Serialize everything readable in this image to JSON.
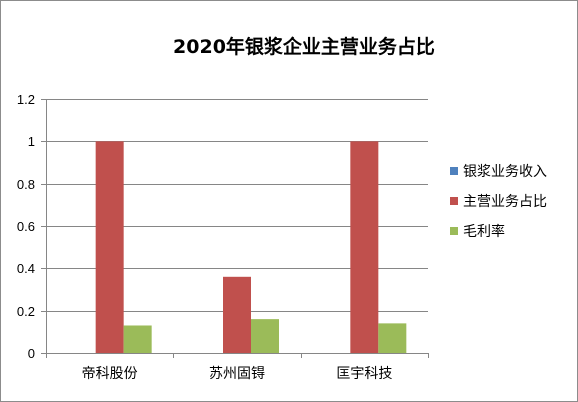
{
  "chart_data": {
    "type": "bar",
    "title": "2020年银浆企业主营业务占比",
    "xlabel": "",
    "ylabel": "",
    "categories": [
      "帝科股份",
      "苏州固锝",
      "匡宇科技"
    ],
    "series": [
      {
        "name": "银浆业务收入",
        "color": "#4f81bd",
        "values": [
          0,
          0,
          0
        ]
      },
      {
        "name": "主营业务占比",
        "color": "#c0504d",
        "values": [
          1.0,
          0.36,
          1.0
        ]
      },
      {
        "name": "毛利率",
        "color": "#9bbb59",
        "values": [
          0.13,
          0.16,
          0.14
        ]
      }
    ],
    "ylim": [
      0,
      1.2
    ],
    "yticks": [
      0,
      0.2,
      0.4,
      0.6,
      0.8,
      1,
      1.2
    ],
    "ytick_labels": [
      "0",
      "0.2",
      "0.4",
      "0.6",
      "0.8",
      "1",
      "1.2"
    ],
    "grid": true,
    "legend_position": "right"
  }
}
